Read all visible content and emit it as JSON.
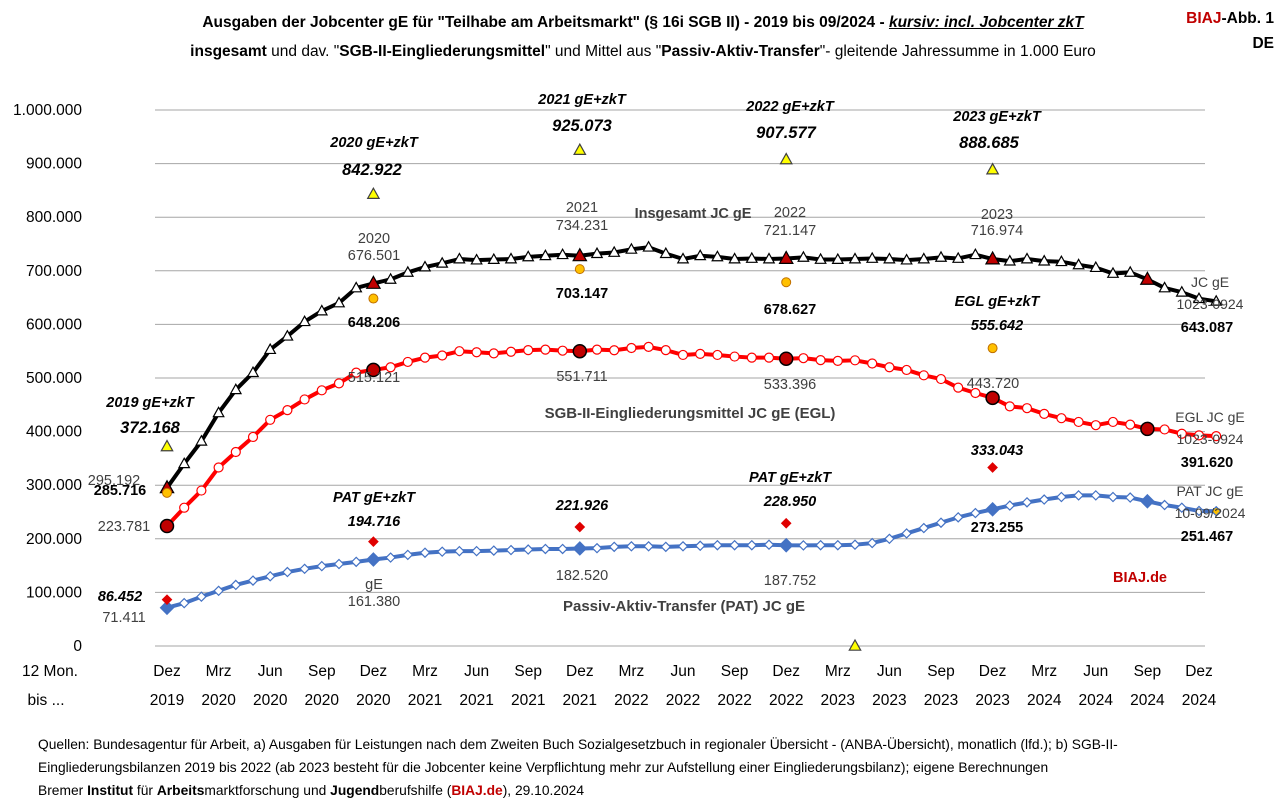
{
  "header": {
    "title_part1": "Ausgaben der Jobcenter gE für \"Teilhabe am Arbeitsmarkt\" (§ 16i SGB II) - 2019 bis 09/2024 - ",
    "title_part2": "kursiv: incl. Jobcenter zkT",
    "subtitle_bold1": "insgesamt",
    "subtitle_text1": " und dav. \"",
    "subtitle_bold2": "SGB-II-Eingliederungsmittel",
    "subtitle_text2": "\" und Mittel aus \"",
    "subtitle_bold3": "Passiv-Aktiv-Transfer",
    "subtitle_text3": "\"- gleitende Jahressumme in 1.000 Euro",
    "badge_brand": "BIAJ",
    "badge_suffix": "-Abb. 1",
    "badge_region": "DE"
  },
  "chart_data": {
    "type": "line",
    "y_ticks": [
      "0",
      "100.000",
      "200.000",
      "300.000",
      "400.000",
      "500.000",
      "600.000",
      "700.000",
      "800.000",
      "900.000",
      "1.000.000"
    ],
    "ylim": [
      0,
      1000000
    ],
    "x_axis_title": [
      "12 Mon.",
      "bis ..."
    ],
    "x_ticks": [
      [
        "Dez",
        "2019"
      ],
      [
        "Mrz",
        "2020"
      ],
      [
        "Jun",
        "2020"
      ],
      [
        "Sep",
        "2020"
      ],
      [
        "Dez",
        "2020"
      ],
      [
        "Mrz",
        "2021"
      ],
      [
        "Jun",
        "2021"
      ],
      [
        "Sep",
        "2021"
      ],
      [
        "Dez",
        "2021"
      ],
      [
        "Mrz",
        "2022"
      ],
      [
        "Jun",
        "2022"
      ],
      [
        "Sep",
        "2022"
      ],
      [
        "Dez",
        "2022"
      ],
      [
        "Mrz",
        "2023"
      ],
      [
        "Jun",
        "2023"
      ],
      [
        "Sep",
        "2023"
      ],
      [
        "Dez",
        "2023"
      ],
      [
        "Mrz",
        "2024"
      ],
      [
        "Jun",
        "2024"
      ],
      [
        "Sep",
        "2024"
      ],
      [
        "Dez",
        "2024"
      ]
    ],
    "grid": true,
    "series": [
      {
        "name": "Insgesamt JC gE",
        "color": "#000000",
        "marker": "triangle",
        "values": [
          295192,
          340000,
          382000,
          435000,
          478000,
          510000,
          553000,
          578000,
          605000,
          625000,
          640000,
          668000,
          676501,
          684000,
          697000,
          707000,
          714000,
          722000,
          720000,
          721000,
          722000,
          726000,
          728000,
          730000,
          728000,
          732000,
          734231,
          740000,
          744000,
          732000,
          722000,
          728000,
          726000,
          722000,
          723000,
          722000,
          723000,
          725000,
          721147,
          721000,
          722000,
          723000,
          722000,
          720000,
          722000,
          725000,
          723000,
          730000,
          722000,
          718000,
          722000,
          718000,
          716974,
          711000,
          706000,
          695000,
          697000,
          684000,
          668000,
          660000,
          648000,
          643087
        ]
      },
      {
        "name": "SGB-II-Eingliederungsmittel JC gE (EGL)",
        "color": "#ff0000",
        "marker": "circle",
        "values": [
          223781,
          258000,
          290000,
          333000,
          362000,
          390000,
          422000,
          440000,
          460000,
          477000,
          490000,
          510000,
          515121,
          520000,
          530000,
          538000,
          542000,
          550000,
          548000,
          546000,
          549000,
          552000,
          553000,
          551000,
          550000,
          553000,
          551711,
          556000,
          558000,
          552000,
          543000,
          545000,
          543000,
          540000,
          538000,
          538000,
          536000,
          537000,
          533396,
          532000,
          533000,
          527000,
          520000,
          515000,
          505000,
          498000,
          482000,
          472000,
          463000,
          447000,
          443720,
          433000,
          425000,
          418000,
          412000,
          418000,
          413000,
          405000,
          404000,
          396000,
          393000,
          391620
        ]
      },
      {
        "name": "Passiv-Aktiv-Transfer (PAT) JC gE",
        "color": "#4472c4",
        "marker": "diamond",
        "values": [
          71411,
          80000,
          92000,
          103000,
          114000,
          122000,
          130000,
          138000,
          144000,
          149000,
          153000,
          157000,
          161380,
          165000,
          170000,
          174000,
          176000,
          177000,
          177000,
          178000,
          179000,
          180000,
          181000,
          181000,
          182000,
          182520,
          185000,
          186000,
          186000,
          185000,
          186000,
          187000,
          188000,
          188000,
          188000,
          189000,
          188000,
          187752,
          188000,
          188000,
          189000,
          192000,
          200000,
          210000,
          220000,
          230000,
          240000,
          248000,
          255000,
          262000,
          268000,
          273255,
          278000,
          281000,
          281000,
          278000,
          277000,
          270000,
          263000,
          258000,
          252000,
          251467
        ]
      }
    ],
    "zkT_points": [
      {
        "name": "2019 gE+zkT",
        "x_index": 0,
        "value": 372168,
        "label": "372.168",
        "type": "insgesamt"
      },
      {
        "name": "2020 gE+zkT",
        "x_index": 12,
        "value": 842922,
        "label": "842.922",
        "type": "insgesamt"
      },
      {
        "name": "2021 gE+zkT",
        "x_index": 24,
        "value": 925073,
        "label": "925.073",
        "type": "insgesamt"
      },
      {
        "name": "2022 gE+zkT",
        "x_index": 36,
        "value": 907577,
        "label": "907.577",
        "type": "insgesamt"
      },
      {
        "name": "",
        "x_index": 40,
        "value": 0,
        "label": "",
        "type": "insgesamt"
      },
      {
        "name": "2023 gE+zkT",
        "x_index": 48,
        "value": 888685,
        "label": "888.685",
        "type": "insgesamt"
      },
      {
        "name": "",
        "x_index": 0,
        "value": 285716,
        "label": "285.716",
        "type": "egl"
      },
      {
        "name": "",
        "x_index": 12,
        "value": 648206,
        "label": "648.206",
        "type": "egl"
      },
      {
        "name": "",
        "x_index": 24,
        "value": 703147,
        "label": "703.147",
        "type": "egl"
      },
      {
        "name": "",
        "x_index": 36,
        "value": 678627,
        "label": "678.627",
        "type": "egl"
      },
      {
        "name": "EGL gE+zkT",
        "x_index": 48,
        "value": 555642,
        "label": "555.642",
        "type": "egl"
      },
      {
        "name": "",
        "x_index": 0,
        "value": 86452,
        "label": "86.452",
        "type": "pat"
      },
      {
        "name": "PAT gE+zkT",
        "x_index": 12,
        "value": 194716,
        "label": "194.716",
        "type": "pat"
      },
      {
        "name": "",
        "x_index": 24,
        "value": 221926,
        "label": "221.926",
        "type": "pat"
      },
      {
        "name": "PAT gE+zkT",
        "x_index": 36,
        "value": 228950,
        "label": "228.950",
        "type": "pat"
      },
      {
        "name": "",
        "x_index": 48,
        "value": 333043,
        "label": "333.043",
        "type": "pat"
      }
    ],
    "highlight_indices": [
      0,
      12,
      24,
      36,
      48,
      57
    ],
    "annotations": {
      "insgesamt": [
        {
          "year": "",
          "label": "295.192"
        },
        {
          "year": "2020",
          "label": "676.501"
        },
        {
          "year": "2021",
          "label": "734.231"
        },
        {
          "year": "2022",
          "label": "721.147"
        },
        {
          "year": "2023",
          "label": "716.974"
        }
      ],
      "egl": [
        {
          "label": "223.781"
        },
        {
          "label": "515.121"
        },
        {
          "label": "551.711"
        },
        {
          "label": "533.396"
        },
        {
          "label": "443.720"
        }
      ],
      "pat": [
        {
          "label": "71.411"
        },
        {
          "year": "gE",
          "label": "161.380"
        },
        {
          "label": "182.520"
        },
        {
          "label": "187.752"
        },
        {
          "label": "273.255"
        }
      ],
      "series_titles": {
        "insgesamt": "Insgesamt JC gE",
        "egl": "SGB-II-Eingliederungsmittel JC gE (EGL)",
        "pat": "Passiv-Aktiv-Transfer (PAT) JC gE"
      },
      "end_labels": {
        "insgesamt": [
          "JC gE",
          "1023-0924",
          "643.087"
        ],
        "egl": [
          "EGL JC gE",
          "1023-0924",
          "391.620"
        ],
        "pat": [
          "PAT JC gE",
          "10-09/2024",
          "251.467"
        ]
      },
      "watermark": "BIAJ.de"
    }
  },
  "footer": {
    "line1": "Quellen: Bundesagentur für Arbeit, a) Ausgaben für Leistungen nach dem Zweiten Buch Sozialgesetzbuch in regionaler Übersicht - (ANBA-Übersicht), monatlich (lfd.); b) SGB-II-",
    "line2": "Eingliederungsbilanzen 2019 bis 2022 (ab 2023 besteht für die Jobcenter keine Verpflichtung mehr zur Aufstellung einer Eingliederungsbilanz); eigene Berechnungen",
    "l3_a": "Bremer ",
    "l3_b": "Institut",
    "l3_c": " für ",
    "l3_d": "Arbeits",
    "l3_e": "marktforschung und ",
    "l3_f": "Jugend",
    "l3_g": "berufshilfe (",
    "l3_h": "BIAJ.de",
    "l3_i": "), 29.10.2024"
  }
}
